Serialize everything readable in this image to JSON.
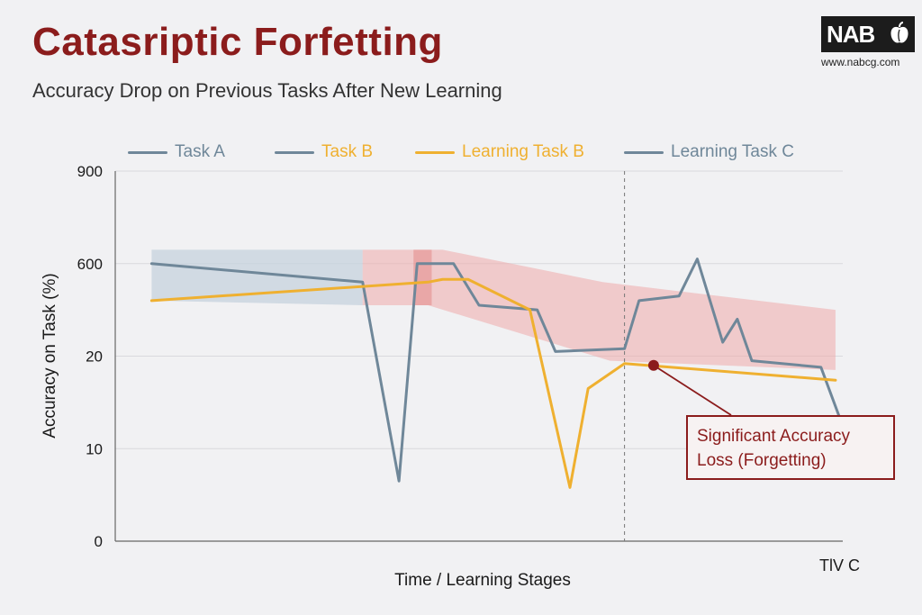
{
  "header": {
    "title": "Catasriptic Forfetting",
    "subtitle": "Accuracy Drop on Previous Tasks After New Learning"
  },
  "logo": {
    "text": "NAB",
    "url": "www.nabcg.com"
  },
  "colors": {
    "title": "#8b1c1c",
    "task_a": "#6f8799",
    "task_b": "#6f8799",
    "learning_task_b": "#efb030",
    "learning_task_c": "#6f8799",
    "band_blue": "#c7d3de",
    "band_red": "#f0b5b5",
    "annotation": "#8b1c1c"
  },
  "chart_data": {
    "type": "line",
    "title": "Catasriptic Forfetting",
    "subtitle": "Accuracy Drop on Previous Tasks After New Learning",
    "xlabel": "Time / Learning Stages",
    "x_end_label": "TlV C",
    "ylabel": "Accuracy on Task (%)",
    "y_tick_labels": [
      "0",
      "10",
      "20",
      "600",
      "900"
    ],
    "y_tick_positions": [
      0,
      1,
      2,
      3,
      4
    ],
    "ylim": [
      0,
      4
    ],
    "xlim": [
      0,
      100
    ],
    "grid": true,
    "legend_position": "top",
    "legend": [
      {
        "name": "Task A",
        "color": "#6f8799"
      },
      {
        "name": "Task B",
        "color": "#efb030"
      },
      {
        "name": "Learning Task B",
        "color": "#efb030"
      },
      {
        "name": "Learning Task C",
        "color": "#6f8799"
      }
    ],
    "vertical_marker_x": 70,
    "series": [
      {
        "name": "Task A",
        "color": "#6f8799",
        "points": [
          [
            5,
            3.0
          ],
          [
            34,
            2.8
          ],
          [
            39,
            0.65
          ],
          [
            41.5,
            3.0
          ],
          [
            46.5,
            3.0
          ],
          [
            50,
            2.55
          ],
          [
            58,
            2.5
          ],
          [
            60.5,
            2.05
          ],
          [
            70,
            2.08
          ],
          [
            72,
            2.6
          ],
          [
            77.5,
            2.65
          ],
          [
            80,
            3.05
          ],
          [
            83.5,
            2.15
          ],
          [
            85.5,
            2.4
          ],
          [
            87.5,
            1.95
          ],
          [
            97,
            1.88
          ],
          [
            99.5,
            1.35
          ]
        ]
      },
      {
        "name": "Learning Task B",
        "color": "#efb030",
        "points": [
          [
            5,
            2.6
          ],
          [
            43,
            2.8
          ],
          [
            45,
            2.83
          ],
          [
            48.5,
            2.83
          ],
          [
            57,
            2.5
          ],
          [
            62.5,
            0.58
          ],
          [
            65,
            1.65
          ],
          [
            70,
            1.92
          ],
          [
            99,
            1.74
          ]
        ]
      }
    ],
    "bands": [
      {
        "color": "blue",
        "upper": [
          [
            5,
            3.15
          ],
          [
            34,
            3.15
          ]
        ],
        "lower": [
          [
            5,
            2.6
          ],
          [
            34,
            2.55
          ]
        ]
      },
      {
        "color": "red",
        "upper": [
          [
            34,
            3.15
          ],
          [
            45,
            3.15
          ],
          [
            67,
            2.8
          ],
          [
            99,
            2.5
          ]
        ],
        "lower": [
          [
            34,
            2.55
          ],
          [
            43,
            2.55
          ],
          [
            68,
            1.95
          ],
          [
            99,
            1.85
          ]
        ]
      },
      {
        "color": "red-dark",
        "upper": [
          [
            41,
            3.15
          ],
          [
            43.5,
            3.15
          ]
        ],
        "lower": [
          [
            41,
            2.55
          ],
          [
            43.5,
            2.55
          ]
        ]
      }
    ],
    "annotation": {
      "lines": [
        "Significant Accuracy",
        "Loss (Forgetting)"
      ],
      "point": [
        74,
        1.9
      ]
    }
  }
}
